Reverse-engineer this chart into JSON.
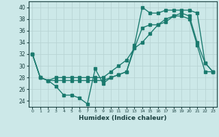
{
  "xlabel": "Humidex (Indice chaleur)",
  "bg_color": "#cce8e8",
  "grid_color": "#b8d4d4",
  "line_color": "#1a7a6e",
  "xlim": [
    -0.5,
    23.5
  ],
  "ylim": [
    23,
    41
  ],
  "yticks": [
    24,
    26,
    28,
    30,
    32,
    34,
    36,
    38,
    40
  ],
  "xticks": [
    0,
    1,
    2,
    3,
    4,
    5,
    6,
    7,
    8,
    9,
    10,
    11,
    12,
    13,
    14,
    15,
    16,
    17,
    18,
    19,
    20,
    21,
    22,
    23
  ],
  "line1_x": [
    0,
    1,
    2,
    3,
    4,
    5,
    6,
    7,
    8,
    9,
    10,
    11,
    12,
    13,
    14,
    15,
    16,
    17,
    18,
    19,
    20,
    21,
    22,
    23
  ],
  "line1_y": [
    32,
    28,
    27.5,
    26.5,
    25,
    25,
    24.5,
    23.5,
    29.5,
    27,
    28,
    28.5,
    29,
    33,
    36.5,
    37,
    37,
    38,
    38.5,
    38.5,
    38,
    33.5,
    29,
    29
  ],
  "line2_x": [
    0,
    1,
    2,
    3,
    4,
    5,
    6,
    7,
    8,
    9,
    10,
    11,
    12,
    13,
    14,
    15,
    16,
    17,
    18,
    19,
    20,
    21,
    22,
    23
  ],
  "line2_y": [
    32,
    28,
    27.5,
    28,
    28,
    28,
    28,
    28,
    28,
    28,
    29,
    30,
    31,
    33,
    34,
    35.5,
    37,
    37.5,
    38.5,
    39,
    38.5,
    34,
    30.5,
    29
  ],
  "line3_x": [
    0,
    1,
    2,
    3,
    4,
    5,
    6,
    7,
    8,
    9,
    10,
    11,
    12,
    13,
    14,
    15,
    16,
    17,
    18,
    19,
    20,
    21,
    22,
    23
  ],
  "line3_y": [
    32,
    28,
    27.5,
    27.5,
    27.5,
    27.5,
    27.5,
    27.5,
    27.5,
    27.5,
    28,
    28.5,
    29,
    33.5,
    40,
    39,
    39,
    39.5,
    39.5,
    39.5,
    39.5,
    39,
    30.5,
    29
  ]
}
